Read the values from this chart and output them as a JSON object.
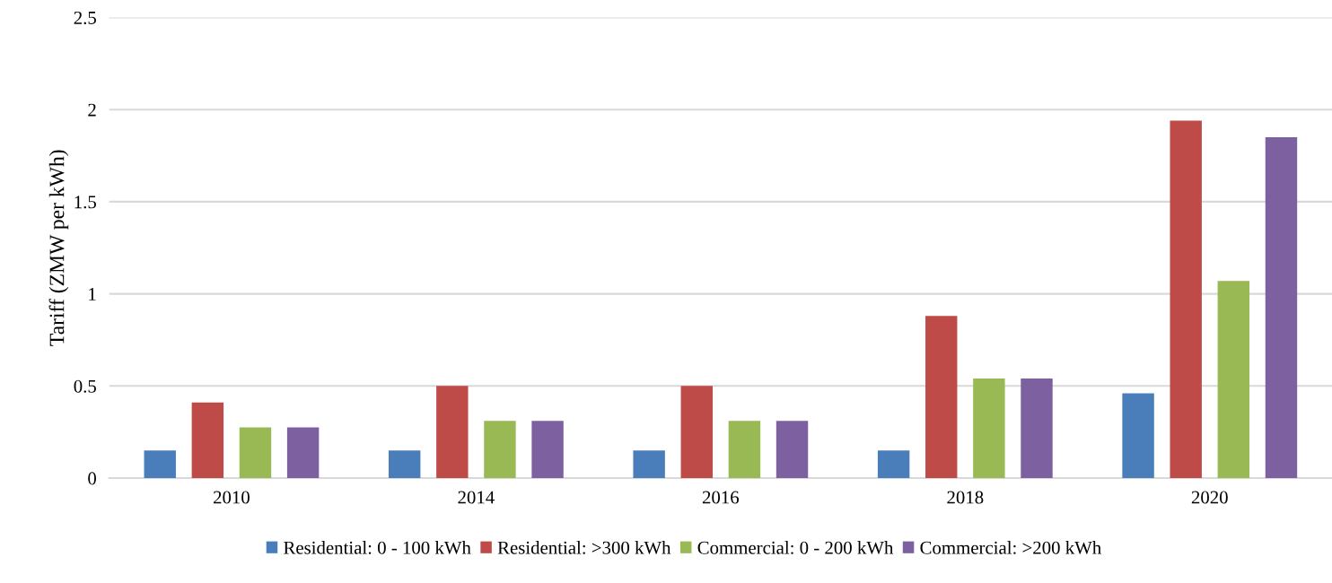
{
  "chart_data": {
    "type": "bar",
    "ylabel": "Tariff (ZMW per kWh)",
    "categories": [
      "2010",
      "2014",
      "2016",
      "2018",
      "2020"
    ],
    "series": [
      {
        "name": "Residential: 0 - 100 kWh",
        "color": "#4a7ebb",
        "values": [
          0.15,
          0.15,
          0.15,
          0.15,
          0.46
        ]
      },
      {
        "name": "Residential: >300 kWh",
        "color": "#be4b48",
        "values": [
          0.41,
          0.5,
          0.5,
          0.88,
          1.94
        ]
      },
      {
        "name": "Commercial: 0 - 200 kWh",
        "color": "#98b954",
        "values": [
          0.275,
          0.31,
          0.31,
          0.54,
          1.07
        ]
      },
      {
        "name": "Commercial: >200 kWh",
        "color": "#7d60a0",
        "values": [
          0.275,
          0.31,
          0.31,
          0.54,
          1.85
        ]
      }
    ],
    "ylim": [
      0,
      2.5
    ],
    "yticks": [
      0,
      0.5,
      1,
      1.5,
      2,
      2.5
    ],
    "grid": "y",
    "legend": "bottom"
  }
}
